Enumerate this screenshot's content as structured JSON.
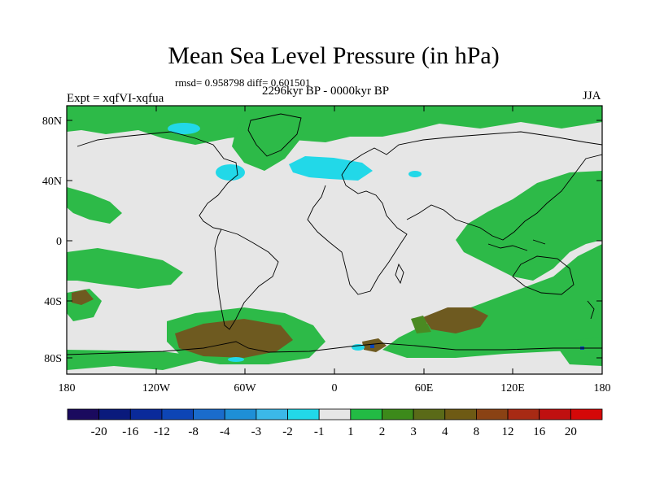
{
  "title": "Mean Sea Level Pressure (in hPa)",
  "stats": "rmsd= 0.958798 diff= 0.601501",
  "experiment": "Expt = xqfVI-xqfua",
  "period": "2296kyr BP - 0000kyr BP",
  "season": "JJA",
  "axes": {
    "lat_ticks": [
      "80N",
      "40N",
      "0",
      "40S",
      "80S"
    ],
    "lon_ticks": [
      "180",
      "120W",
      "60W",
      "0",
      "60E",
      "120E",
      "180"
    ]
  },
  "legend": {
    "labels": [
      "-20",
      "-16",
      "-12",
      "-8",
      "-4",
      "-3",
      "-2",
      "-1",
      "1",
      "2",
      "3",
      "4",
      "8",
      "12",
      "16",
      "20"
    ],
    "colors": [
      "#1a0a5e",
      "#0a1a7c",
      "#0a2a9a",
      "#0d45b5",
      "#1a6ccc",
      "#1e8fd6",
      "#3bb8e8",
      "#22d8e8",
      "#e6e6e6",
      "#22bb44",
      "#3c8a1a",
      "#5a6a18",
      "#6e5a14",
      "#8a4214",
      "#a82a14",
      "#c01010",
      "#d40808"
    ]
  },
  "colors": {
    "neutral": "#e6e6e6",
    "green": "#2dba48",
    "darkgreen": "#4a8a22",
    "brown": "#705a20",
    "cyan": "#22d8e8",
    "blue": "#1a6ccc",
    "navy": "#0a1a7c"
  }
}
